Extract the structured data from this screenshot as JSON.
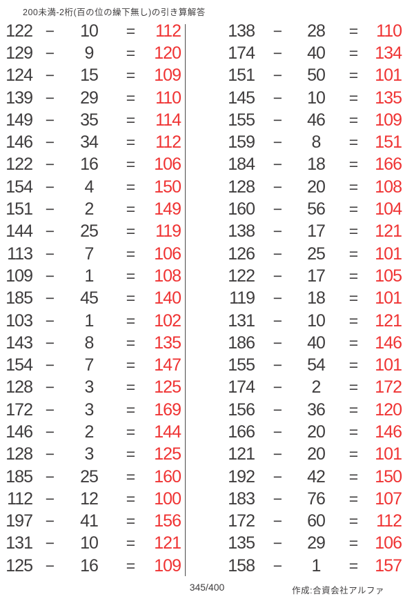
{
  "title": "200未満-2桁(百の位の繰下無し)の引き算解答",
  "operator": "−",
  "equals": "=",
  "footer": {
    "page_count": "345/400",
    "credit": "作成:合資会社アルファ"
  },
  "colors": {
    "text": "#3e3c3d",
    "answer_red": "#ef3333",
    "divider": "#4a4a4a",
    "paper": "#ffffff"
  },
  "problems": {
    "left": [
      {
        "minuend": 122,
        "subtrahend": 10,
        "answer": 112
      },
      {
        "minuend": 129,
        "subtrahend": 9,
        "answer": 120
      },
      {
        "minuend": 124,
        "subtrahend": 15,
        "answer": 109
      },
      {
        "minuend": 139,
        "subtrahend": 29,
        "answer": 110
      },
      {
        "minuend": 149,
        "subtrahend": 35,
        "answer": 114
      },
      {
        "minuend": 146,
        "subtrahend": 34,
        "answer": 112
      },
      {
        "minuend": 122,
        "subtrahend": 16,
        "answer": 106
      },
      {
        "minuend": 154,
        "subtrahend": 4,
        "answer": 150
      },
      {
        "minuend": 151,
        "subtrahend": 2,
        "answer": 149
      },
      {
        "minuend": 144,
        "subtrahend": 25,
        "answer": 119
      },
      {
        "minuend": 113,
        "subtrahend": 7,
        "answer": 106
      },
      {
        "minuend": 109,
        "subtrahend": 1,
        "answer": 108
      },
      {
        "minuend": 185,
        "subtrahend": 45,
        "answer": 140
      },
      {
        "minuend": 103,
        "subtrahend": 1,
        "answer": 102
      },
      {
        "minuend": 143,
        "subtrahend": 8,
        "answer": 135
      },
      {
        "minuend": 154,
        "subtrahend": 7,
        "answer": 147
      },
      {
        "minuend": 128,
        "subtrahend": 3,
        "answer": 125
      },
      {
        "minuend": 172,
        "subtrahend": 3,
        "answer": 169
      },
      {
        "minuend": 146,
        "subtrahend": 2,
        "answer": 144
      },
      {
        "minuend": 128,
        "subtrahend": 3,
        "answer": 125
      },
      {
        "minuend": 185,
        "subtrahend": 25,
        "answer": 160
      },
      {
        "minuend": 112,
        "subtrahend": 12,
        "answer": 100
      },
      {
        "minuend": 197,
        "subtrahend": 41,
        "answer": 156
      },
      {
        "minuend": 131,
        "subtrahend": 10,
        "answer": 121
      },
      {
        "minuend": 125,
        "subtrahend": 16,
        "answer": 109
      }
    ],
    "right": [
      {
        "minuend": 138,
        "subtrahend": 28,
        "answer": 110
      },
      {
        "minuend": 174,
        "subtrahend": 40,
        "answer": 134
      },
      {
        "minuend": 151,
        "subtrahend": 50,
        "answer": 101
      },
      {
        "minuend": 145,
        "subtrahend": 10,
        "answer": 135
      },
      {
        "minuend": 155,
        "subtrahend": 46,
        "answer": 109
      },
      {
        "minuend": 159,
        "subtrahend": 8,
        "answer": 151
      },
      {
        "minuend": 184,
        "subtrahend": 18,
        "answer": 166
      },
      {
        "minuend": 128,
        "subtrahend": 20,
        "answer": 108
      },
      {
        "minuend": 160,
        "subtrahend": 56,
        "answer": 104
      },
      {
        "minuend": 138,
        "subtrahend": 17,
        "answer": 121
      },
      {
        "minuend": 126,
        "subtrahend": 25,
        "answer": 101
      },
      {
        "minuend": 122,
        "subtrahend": 17,
        "answer": 105
      },
      {
        "minuend": 119,
        "subtrahend": 18,
        "answer": 101
      },
      {
        "minuend": 131,
        "subtrahend": 10,
        "answer": 121
      },
      {
        "minuend": 186,
        "subtrahend": 40,
        "answer": 146
      },
      {
        "minuend": 155,
        "subtrahend": 54,
        "answer": 101
      },
      {
        "minuend": 174,
        "subtrahend": 2,
        "answer": 172
      },
      {
        "minuend": 156,
        "subtrahend": 36,
        "answer": 120
      },
      {
        "minuend": 166,
        "subtrahend": 20,
        "answer": 146
      },
      {
        "minuend": 121,
        "subtrahend": 20,
        "answer": 101
      },
      {
        "minuend": 192,
        "subtrahend": 42,
        "answer": 150
      },
      {
        "minuend": 183,
        "subtrahend": 76,
        "answer": 107
      },
      {
        "minuend": 172,
        "subtrahend": 60,
        "answer": 112
      },
      {
        "minuend": 135,
        "subtrahend": 29,
        "answer": 106
      },
      {
        "minuend": 158,
        "subtrahend": 1,
        "answer": 157
      }
    ]
  }
}
